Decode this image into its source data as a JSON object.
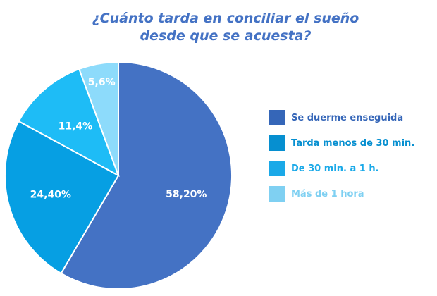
{
  "chart_data": {
    "type": "pie",
    "title_lines": [
      "¿Cuánto tarda en conciliar el sueño",
      "desde que se acuesta?"
    ],
    "legend_placement": "right",
    "slices": [
      {
        "label": "Se duerme enseguida",
        "value": 58.2,
        "value_label": "58,20%",
        "color": "#4472c4",
        "legend_color": "#3566b8"
      },
      {
        "label": "Tarda menos de 30 min.",
        "value": 24.4,
        "value_label": "24,40%",
        "color": "#069fe3",
        "legend_color": "#068fd0"
      },
      {
        "label": "De 30 min. a 1 h.",
        "value": 11.4,
        "value_label": "11,4%",
        "color": "#1ebcf6",
        "legend_color": "#1aa9e8"
      },
      {
        "label": "Más de 1 hora",
        "value": 5.6,
        "value_label": "5,6%",
        "color": "#8ddbfb",
        "legend_color": "#7fd0f2"
      }
    ]
  }
}
